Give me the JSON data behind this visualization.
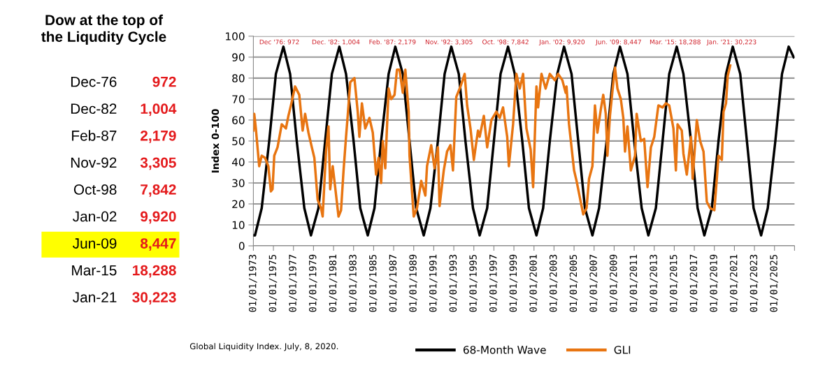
{
  "chart_data": [
    {
      "type": "other",
      "title": "Dow at the top of\nthe Liqudity Cycle",
      "categories": [
        "Dec-76",
        "Dec-82",
        "Feb-87",
        "Nov-92",
        "Oct-98",
        "Jan-02",
        "Jun-09",
        "Mar-15",
        "Jan-21"
      ],
      "value_labels": [
        "972",
        "1,004",
        "2,179",
        "3,305",
        "7,842",
        "9,920",
        "8,447",
        "18,288",
        "30,223"
      ],
      "color": "#e41a1c",
      "colors": [
        "#ffffff",
        "#ffffff",
        "#ffffff",
        "#ffffff",
        "#ffffff",
        "#ffffff",
        "#ffff00",
        "#ffffff",
        "#ffffff"
      ]
    },
    {
      "type": "line",
      "ylabel": "Index 0-100",
      "xlim": [
        "1973-01-01",
        "2027-01-01"
      ],
      "ylim": [
        0,
        100
      ],
      "yticks": [
        0,
        10,
        20,
        30,
        40,
        50,
        60,
        70,
        80,
        90,
        100
      ],
      "xticks": [
        {
          "value": "1973-01-01",
          "label": "01/01/1973"
        },
        {
          "value": "1975-01-01",
          "label": "01/01/1975"
        },
        {
          "value": "1977-01-01",
          "label": "01/01/1977"
        },
        {
          "value": "1979-01-01",
          "label": "01/01/1979"
        },
        {
          "value": "1981-01-01",
          "label": "01/01/1981"
        },
        {
          "value": "1983-01-01",
          "label": "01/01/1983"
        },
        {
          "value": "1985-01-01",
          "label": "01/01/1985"
        },
        {
          "value": "1987-01-01",
          "label": "01/01/1987"
        },
        {
          "value": "1989-01-01",
          "label": "01/01/1989"
        },
        {
          "value": "1991-01-01",
          "label": "01/01/1991"
        },
        {
          "value": "1993-01-01",
          "label": "01/01/1993"
        },
        {
          "value": "1995-01-01",
          "label": "01/01/1995"
        },
        {
          "value": "1997-01-01",
          "label": "01/01/1997"
        },
        {
          "value": "1999-01-01",
          "label": "01/01/1999"
        },
        {
          "value": "2001-01-01",
          "label": "01/01/2001"
        },
        {
          "value": "2003-01-01",
          "label": "01/01/2003"
        },
        {
          "value": "2005-01-01",
          "label": "01/01/2005"
        },
        {
          "value": "2007-01-01",
          "label": "01/01/2007"
        },
        {
          "value": "2009-01-01",
          "label": "01/01/2009"
        },
        {
          "value": "2011-01-01",
          "label": "01/01/2011"
        },
        {
          "value": "2013-01-01",
          "label": "01/01/2013"
        },
        {
          "value": "2015-01-01",
          "label": "01/01/2015"
        },
        {
          "value": "2017-01-01",
          "label": "01/01/2017"
        },
        {
          "value": "2019-01-01",
          "label": "01/01/2019"
        },
        {
          "value": "2021-01-01",
          "label": "01/01/2021"
        },
        {
          "value": "2023-01-01",
          "label": "01/01/2023"
        },
        {
          "value": "2025-01-01",
          "label": "01/01/2025"
        },
        {
          "value": "2027-01-01",
          "label": null
        }
      ],
      "grid": "y",
      "legend": "bottom",
      "marker": "none",
      "line_style": "solid",
      "series": [
        {
          "name": "68-Month Wave",
          "color": "#000000",
          "x": [
            "1973-01",
            "1973-03",
            "1973-11",
            "1974-08",
            "1975-04",
            "1976-01",
            "1976-09",
            "1977-05",
            "1978-02",
            "1978-10",
            "1979-07",
            "1980-03",
            "1980-11",
            "1981-08",
            "1982-04",
            "1983-01",
            "1983-09",
            "1984-06",
            "1985-02",
            "1985-10",
            "1986-07",
            "1987-03",
            "1987-12",
            "1988-08",
            "1989-04",
            "1990-01",
            "1990-09",
            "1991-06",
            "1992-02",
            "1992-10",
            "1993-07",
            "1994-03",
            "1994-12",
            "1995-08",
            "1996-05",
            "1997-01",
            "1997-09",
            "1998-06",
            "1999-02",
            "1999-11",
            "2000-07",
            "2001-04",
            "2001-12",
            "2002-08",
            "2003-05",
            "2004-01",
            "2004-10",
            "2005-06",
            "2006-02",
            "2006-11",
            "2007-07",
            "2008-04",
            "2008-12",
            "2009-08",
            "2010-05",
            "2011-01",
            "2011-10",
            "2012-06",
            "2013-03",
            "2013-11",
            "2014-07",
            "2015-04",
            "2015-12",
            "2016-09",
            "2017-05",
            "2018-01",
            "2018-10",
            "2019-06",
            "2020-03",
            "2020-11",
            "2021-08",
            "2022-04",
            "2022-12",
            "2023-09",
            "2024-05",
            "2025-02",
            "2025-10",
            "2026-06",
            "2026-12"
          ],
          "values": [
            5,
            5,
            18,
            50,
            82,
            95,
            82,
            50,
            18,
            5,
            18,
            50,
            82,
            95,
            82,
            50,
            18,
            5,
            18,
            50,
            82,
            95,
            82,
            50,
            18,
            5,
            18,
            50,
            82,
            95,
            82,
            50,
            18,
            5,
            18,
            50,
            82,
            95,
            82,
            50,
            18,
            5,
            18,
            50,
            82,
            95,
            82,
            50,
            18,
            5,
            18,
            50,
            82,
            95,
            82,
            50,
            18,
            5,
            18,
            50,
            82,
            95,
            82,
            50,
            18,
            5,
            18,
            50,
            82,
            95,
            82,
            50,
            18,
            5,
            18,
            50,
            82,
            95,
            90
          ]
        },
        {
          "name": "GLI",
          "color": "#e87511",
          "x": [
            "1973-01",
            "1973-02",
            "1973-04",
            "1973-08",
            "1973-11",
            "1974-03",
            "1974-07",
            "1974-10",
            "1974-12",
            "1975-02",
            "1975-06",
            "1975-11",
            "1976-04",
            "1976-07",
            "1976-10",
            "1977-03",
            "1977-08",
            "1977-12",
            "1978-03",
            "1978-07",
            "1978-11",
            "1979-02",
            "1979-06",
            "1979-10",
            "1979-12",
            "1980-04",
            "1980-07",
            "1980-09",
            "1980-12",
            "1981-03",
            "1981-07",
            "1981-10",
            "1982-01",
            "1982-04",
            "1982-06",
            "1982-09",
            "1983-02",
            "1983-06",
            "1983-08",
            "1983-11",
            "1984-03",
            "1984-08",
            "1984-12",
            "1985-04",
            "1985-07",
            "1985-10",
            "1985-12",
            "1986-03",
            "1986-07",
            "1986-10",
            "1987-02",
            "1987-05",
            "1987-08",
            "1987-12",
            "1988-03",
            "1988-07",
            "1988-08",
            "1989-01",
            "1989-05",
            "1989-10",
            "1990-03",
            "1990-05",
            "1990-10",
            "1991-02",
            "1991-06",
            "1991-08",
            "1992-01",
            "1992-05",
            "1992-09",
            "1992-12",
            "1993-04",
            "1993-09",
            "1994-02",
            "1994-05",
            "1994-09",
            "1995-01",
            "1995-06",
            "1995-08",
            "1996-01",
            "1996-05",
            "1996-10",
            "1997-04",
            "1997-08",
            "1997-12",
            "1998-05",
            "1998-07",
            "1998-12",
            "1999-04",
            "1999-08",
            "1999-12",
            "2000-04",
            "2000-09",
            "2000-12",
            "2001-04",
            "2001-06",
            "2001-10",
            "2002-03",
            "2002-08",
            "2003-02",
            "2003-06",
            "2003-11",
            "2004-03",
            "2004-04",
            "2004-07",
            "2004-10",
            "2005-01",
            "2005-04",
            "2005-08",
            "2005-12",
            "2006-04",
            "2006-07",
            "2006-11",
            "2007-02",
            "2007-05",
            "2007-09",
            "2007-12",
            "2008-03",
            "2008-05",
            "2008-08",
            "2008-11",
            "2009-02",
            "2009-05",
            "2009-09",
            "2009-12",
            "2010-02",
            "2010-05",
            "2010-09",
            "2011-02",
            "2011-04",
            "2011-09",
            "2012-01",
            "2012-05",
            "2012-09",
            "2013-01",
            "2013-06",
            "2013-11",
            "2014-03",
            "2014-07",
            "2014-12",
            "2015-03",
            "2015-05",
            "2015-10",
            "2015-12",
            "2016-04",
            "2016-09",
            "2016-11",
            "2017-04",
            "2017-08",
            "2017-12",
            "2018-04",
            "2018-08",
            "2019-01",
            "2019-04",
            "2019-06",
            "2019-10",
            "2019-12",
            "2020-03",
            "2020-05",
            "2020-08"
          ],
          "values": [
            55,
            63,
            56,
            38,
            43,
            42,
            38,
            26,
            27,
            43,
            47,
            58,
            56,
            62,
            67,
            76,
            72,
            55,
            63,
            54,
            47,
            42,
            22,
            18,
            14,
            45,
            57,
            27,
            38,
            28,
            14,
            17,
            36,
            52,
            62,
            78,
            80,
            64,
            52,
            68,
            56,
            61,
            54,
            34,
            42,
            30,
            50,
            37,
            75,
            70,
            72,
            84,
            84,
            73,
            84,
            64,
            43,
            14,
            18,
            31,
            24,
            38,
            48,
            37,
            47,
            19,
            36,
            45,
            48,
            36,
            71,
            76,
            82,
            67,
            56,
            41,
            55,
            52,
            62,
            47,
            60,
            64,
            61,
            66,
            52,
            38,
            58,
            82,
            75,
            82,
            56,
            46,
            28,
            76,
            66,
            82,
            75,
            82,
            79,
            82,
            79,
            73,
            76,
            58,
            47,
            36,
            31,
            23,
            15,
            18,
            32,
            38,
            67,
            54,
            65,
            72,
            63,
            43,
            62,
            74,
            85,
            75,
            70,
            61,
            45,
            57,
            36,
            43,
            63,
            50,
            51,
            28,
            47,
            52,
            67,
            66,
            68,
            67,
            56,
            36,
            58,
            55,
            44,
            34,
            52,
            32,
            60,
            50,
            45,
            21,
            18,
            17,
            32,
            43,
            41,
            64,
            68,
            81,
            86
          ]
        }
      ],
      "annotations": [
        "Dec '76: 972",
        "Dec. '82: 1,004",
        "Feb. '87: 2,179",
        "Nov. '92: 3,305",
        "Oct. '98: 7,842",
        "Jan. '02: 9,920",
        "Jun. '09: 8,447",
        "Mar. '15: 18,288",
        "Jan. '21: 30,223",
        "Global Liquidity Index. July, 8, 2020."
      ]
    }
  ]
}
